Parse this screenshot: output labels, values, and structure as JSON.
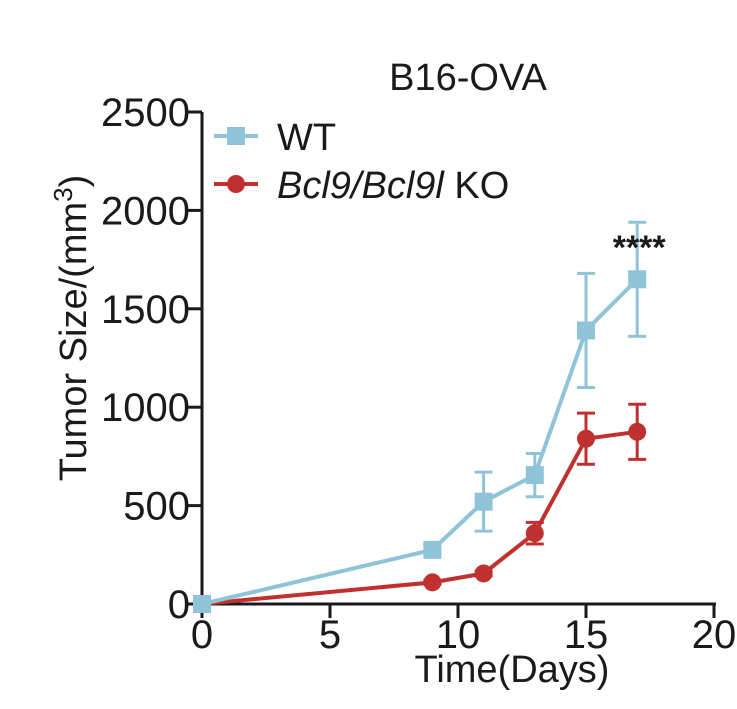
{
  "chart_data": {
    "type": "line",
    "title": "B16-OVA",
    "xlabel": "Time(Days)",
    "ylabel_main": "Tumor Size/(mm",
    "ylabel_sup": "3",
    "ylabel_close": ")",
    "xlim": [
      0,
      20
    ],
    "ylim": [
      0,
      2500
    ],
    "xticks": [
      0,
      5,
      10,
      15,
      20
    ],
    "yticks": [
      0,
      500,
      1000,
      1500,
      2000,
      2500
    ],
    "xtick_labels": [
      "0",
      "5",
      "10",
      "15",
      "20"
    ],
    "ytick_labels": [
      "0",
      "500",
      "1000",
      "1500",
      "2000",
      "2500"
    ],
    "legend_position": "top-left",
    "series": [
      {
        "name": "WT",
        "marker": "square",
        "color": "#8fc3d8",
        "x": [
          0,
          9,
          11,
          13,
          15,
          17
        ],
        "y": [
          0,
          275,
          520,
          655,
          1390,
          1650
        ],
        "err": [
          0,
          25,
          150,
          110,
          290,
          290
        ]
      },
      {
        "name": "Bcl9/Bcl9l KO",
        "marker": "circle",
        "color": "#c0302e",
        "x": [
          0,
          9,
          11,
          13,
          15,
          17
        ],
        "y": [
          0,
          110,
          155,
          360,
          840,
          875
        ],
        "err": [
          0,
          10,
          12,
          55,
          130,
          140
        ]
      }
    ],
    "annotations": [
      {
        "text": "****",
        "x": 17,
        "y": 1900
      }
    ]
  },
  "legend": {
    "wt_label": "WT",
    "ko_italic": "Bcl9/Bcl9l",
    "ko_suffix": " KO"
  }
}
